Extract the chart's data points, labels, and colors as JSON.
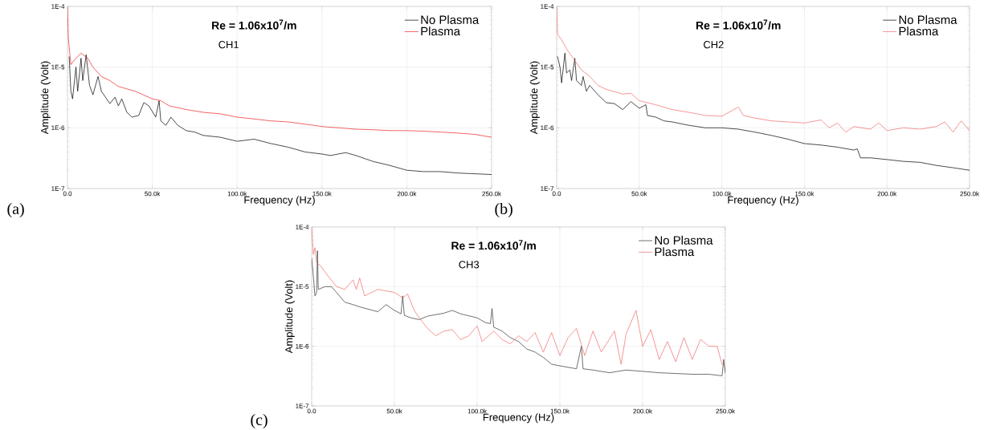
{
  "chart_data": [
    {
      "type": "line",
      "xlabel": "Frequency (Hz)",
      "ylabel": "Amplitude (Volt)",
      "log": "y",
      "grid": true,
      "legend": "top right",
      "xlim": [
        0,
        250000
      ],
      "xticks": [
        {
          "value": 0,
          "label": "0.0"
        },
        {
          "value": 50000,
          "label": "50.0k"
        },
        {
          "value": 100000,
          "label": "100.0k"
        },
        {
          "value": 150000,
          "label": "150.0k"
        },
        {
          "value": 200000,
          "label": "200.0k"
        },
        {
          "value": 250000,
          "label": "250.0k"
        }
      ],
      "ylim": [
        1e-07,
        0.0001
      ],
      "yticks": [
        {
          "value": 1e-07,
          "label": "1E-7"
        },
        {
          "value": 1e-06,
          "label": "1E-6"
        },
        {
          "value": 1e-05,
          "label": "1E-5"
        },
        {
          "value": 0.0001,
          "label": "1E-4"
        }
      ],
      "annotations": [
        "Re = 1.06x10$^{7}$/m",
        "CH1",
        "(a)"
      ],
      "series": [
        {
          "name": "No Plasma",
          "color": "#000000",
          "x": [
            1000,
            2000,
            3000,
            5000,
            6000,
            8000,
            9000,
            11000,
            13000,
            15000,
            18000,
            20000,
            25000,
            28000,
            30000,
            32000,
            35000,
            38000,
            42000,
            45000,
            48000,
            52000,
            54000,
            55000,
            58000,
            61000,
            65000,
            70000,
            75000,
            80000,
            90000,
            100000,
            110000,
            120000,
            130000,
            140000,
            150000,
            155000,
            164000,
            170000,
            180000,
            190000,
            200000,
            210000,
            220000,
            230000,
            240000,
            250000
          ],
          "values": [
            1.5e-05,
            4e-06,
            3e-06,
            1e-05,
            4e-06,
            1.4e-05,
            6e-06,
            1.6e-05,
            5e-06,
            3.5e-06,
            7e-06,
            4e-06,
            2.5e-06,
            3.2e-06,
            2.3e-06,
            3e-06,
            1.8e-06,
            1.5e-06,
            1.6e-06,
            2.6e-06,
            2.3e-06,
            1.5e-06,
            2.8e-06,
            1.3e-06,
            1.1e-06,
            1.5e-06,
            1.1e-06,
            9e-07,
            8.5e-07,
            7.5e-07,
            7e-07,
            6e-07,
            6.5e-07,
            5.5e-07,
            4.8e-07,
            4e-07,
            3.7e-07,
            3.5e-07,
            3.9e-07,
            3.5e-07,
            2.8e-07,
            2.4e-07,
            2e-07,
            1.9e-07,
            1.9e-07,
            1.8e-07,
            1.75e-07,
            1.7e-07
          ]
        },
        {
          "name": "Plasma",
          "color": "#ee2222",
          "x": [
            0,
            500,
            2000,
            4000,
            8000,
            12000,
            15000,
            20000,
            25000,
            30000,
            40000,
            50000,
            55000,
            60000,
            70000,
            80000,
            90000,
            100000,
            110000,
            120000,
            130000,
            140000,
            150000,
            160000,
            170000,
            180000,
            190000,
            200000,
            210000,
            220000,
            230000,
            240000,
            250000
          ],
          "values": [
            0.0001,
            3e-05,
            1.1e-05,
            1.3e-05,
            1.7e-05,
            1.4e-05,
            1e-05,
            7e-06,
            6e-06,
            4.8e-06,
            4e-06,
            3e-06,
            2.8e-06,
            2.3e-06,
            2e-06,
            1.8e-06,
            1.7e-06,
            1.5e-06,
            1.4e-06,
            1.3e-06,
            1.25e-06,
            1.15e-06,
            1.05e-06,
            1e-06,
            9.5e-07,
            9.3e-07,
            9e-07,
            9e-07,
            8.8e-07,
            8.5e-07,
            8.2e-07,
            7.8e-07,
            7e-07
          ]
        }
      ]
    },
    {
      "type": "line",
      "xlabel": "Frequency (Hz)",
      "ylabel": "Amplitude (Volt)",
      "log": "y",
      "grid": true,
      "legend": "top right",
      "xlim": [
        0,
        250000
      ],
      "xticks": [
        {
          "value": 0,
          "label": "0.0"
        },
        {
          "value": 50000,
          "label": "50.0k"
        },
        {
          "value": 100000,
          "label": "100.0k"
        },
        {
          "value": 150000,
          "label": "150.0k"
        },
        {
          "value": 200000,
          "label": "200.0k"
        },
        {
          "value": 250000,
          "label": "250.0k"
        }
      ],
      "ylim": [
        1e-07,
        0.0001
      ],
      "yticks": [
        {
          "value": 1e-07,
          "label": "1E-7"
        },
        {
          "value": 1e-06,
          "label": "1E-6"
        },
        {
          "value": 1e-05,
          "label": "1E-5"
        },
        {
          "value": 0.0001,
          "label": "1E-4"
        }
      ],
      "annotations": [
        "Re = 1.06x10$^{7}$/m",
        "CH2",
        "(b)"
      ],
      "series": [
        {
          "name": "No Plasma",
          "color": "#000000",
          "x": [
            500,
            2000,
            3000,
            5000,
            6000,
            8000,
            9000,
            11000,
            12000,
            15000,
            16000,
            18000,
            20000,
            25000,
            30000,
            35000,
            40000,
            45000,
            50000,
            54000,
            55000,
            60000,
            65000,
            70000,
            80000,
            90000,
            100000,
            110000,
            120000,
            130000,
            140000,
            150000,
            160000,
            170000,
            180000,
            182000,
            184000,
            190000,
            200000,
            210000,
            220000,
            230000,
            240000,
            250000
          ],
          "values": [
            1.5e-05,
            1e-05,
            5.5e-06,
            1.7e-05,
            8e-06,
            9e-06,
            6e-06,
            1.4e-05,
            6e-06,
            5e-06,
            7e-06,
            4e-06,
            5e-06,
            3.5e-06,
            2.6e-06,
            2.5e-06,
            2e-06,
            2.7e-06,
            2.1e-06,
            2.4e-06,
            1.6e-06,
            1.5e-06,
            1.3e-06,
            1.25e-06,
            1.1e-06,
            1e-06,
            1e-06,
            9.5e-07,
            8.5e-07,
            7.5e-07,
            6.5e-07,
            5.5e-07,
            5.2e-07,
            4.8e-07,
            4.3e-07,
            4.5e-07,
            3.2e-07,
            3.2e-07,
            3e-07,
            2.8e-07,
            2.7e-07,
            2.4e-07,
            2.2e-07,
            2e-07
          ]
        },
        {
          "name": "Plasma",
          "color": "#f06868",
          "x": [
            0,
            500,
            3000,
            6000,
            10000,
            15000,
            20000,
            25000,
            30000,
            40000,
            45000,
            50000,
            60000,
            70000,
            80000,
            90000,
            100000,
            110000,
            113000,
            120000,
            130000,
            140000,
            150000,
            160000,
            165000,
            170000,
            175000,
            180000,
            190000,
            195000,
            200000,
            210000,
            220000,
            230000,
            235000,
            240000,
            245000,
            250000
          ],
          "values": [
            0.0001,
            3.5e-05,
            2.8e-05,
            2e-05,
            1.4e-05,
            9e-06,
            7e-06,
            5e-06,
            4.3e-06,
            3.6e-06,
            3.7e-06,
            2.8e-06,
            2.4e-06,
            2e-06,
            1.8e-06,
            1.6e-06,
            1.55e-06,
            2.2e-06,
            1.6e-06,
            1.45e-06,
            1.3e-06,
            1.25e-06,
            1.2e-06,
            1.35e-06,
            1e-06,
            1.2e-06,
            8.5e-07,
            1.05e-06,
            9.5e-07,
            1.2e-06,
            9e-07,
            1e-06,
            9.5e-07,
            1.05e-06,
            1.25e-06,
            8.5e-07,
            1.3e-06,
            9e-07
          ]
        }
      ]
    },
    {
      "type": "line",
      "xlabel": "Frequency (Hz)",
      "ylabel": "Amplitude (Volt)",
      "log": "y",
      "grid": true,
      "legend": "top right",
      "xlim": [
        0,
        250000
      ],
      "xticks": [
        {
          "value": 0,
          "label": "0.0"
        },
        {
          "value": 50000,
          "label": "50.0k"
        },
        {
          "value": 100000,
          "label": "100.0k"
        },
        {
          "value": 150000,
          "label": "150.0k"
        },
        {
          "value": 200000,
          "label": "200.0k"
        },
        {
          "value": 250000,
          "label": "250.0k"
        }
      ],
      "ylim": [
        1e-07,
        0.0001
      ],
      "yticks": [
        {
          "value": 1e-07,
          "label": "1E-7"
        },
        {
          "value": 1e-06,
          "label": "1E-6"
        },
        {
          "value": 1e-05,
          "label": "1E-5"
        },
        {
          "value": 0.0001,
          "label": "1E-4"
        }
      ],
      "annotations": [
        "Re = 1.06x10$^{7}$/m",
        "CH3",
        "(c)"
      ],
      "series": [
        {
          "name": "No Plasma",
          "color": "#333333",
          "x": [
            0,
            1000,
            2000,
            3000,
            3500,
            4000,
            8000,
            12000,
            15000,
            20000,
            25000,
            30000,
            40000,
            45000,
            50000,
            54000,
            55000,
            56000,
            60000,
            65000,
            70000,
            80000,
            85000,
            90000,
            100000,
            105000,
            108000,
            109000,
            110000,
            115000,
            120000,
            125000,
            130000,
            135000,
            140000,
            145000,
            150000,
            160000,
            163000,
            164000,
            170000,
            180000,
            190000,
            200000,
            210000,
            220000,
            230000,
            240000,
            248000,
            249000,
            250000
          ],
          "values": [
            3e-05,
            1.5e-05,
            7e-06,
            8e-06,
            4e-05,
            9e-06,
            1e-05,
            1e-05,
            8e-06,
            5.5e-06,
            5e-06,
            4.5e-06,
            3.8e-06,
            5e-06,
            4e-06,
            3.5e-06,
            7e-06,
            3.3e-06,
            3e-06,
            2.8e-06,
            3.2e-06,
            3.6e-06,
            4e-06,
            3.5e-06,
            3e-06,
            2.5e-06,
            2.4e-06,
            4.3e-06,
            2.1e-06,
            1.8e-06,
            1.4e-06,
            1.2e-06,
            9e-07,
            8e-07,
            6.5e-07,
            5e-07,
            4.7e-07,
            4.2e-07,
            1e-06,
            4.2e-07,
            4e-07,
            3.6e-07,
            4e-07,
            3.8e-07,
            3.6e-07,
            3.5e-07,
            3.4e-07,
            3.4e-07,
            3.2e-07,
            6e-07,
            3.5e-07
          ]
        },
        {
          "name": "Plasma",
          "color": "#f06868",
          "x": [
            0,
            1000,
            2000,
            3000,
            5000,
            10000,
            15000,
            20000,
            25000,
            27000,
            29000,
            32000,
            40000,
            50000,
            55000,
            58000,
            62000,
            65000,
            70000,
            75000,
            80000,
            85000,
            90000,
            95000,
            100000,
            103000,
            110000,
            115000,
            120000,
            125000,
            130000,
            135000,
            140000,
            145000,
            150000,
            155000,
            160000,
            165000,
            170000,
            175000,
            183000,
            187000,
            190000,
            196000,
            200000,
            205000,
            210000,
            215000,
            220000,
            225000,
            230000,
            235000,
            240000,
            245000,
            248000,
            250000
          ],
          "values": [
            0.0001,
            3.5e-05,
            4.5e-05,
            2.5e-05,
            2.3e-05,
            1.5e-05,
            1e-05,
            9e-06,
            1.3e-05,
            9e-06,
            1.4e-05,
            7e-06,
            9e-06,
            8e-06,
            6.5e-06,
            7.5e-06,
            4e-06,
            3e-06,
            2e-06,
            1.5e-06,
            1.8e-06,
            1.9e-06,
            1.3e-06,
            1.5e-06,
            2.2e-06,
            1.2e-06,
            1.8e-06,
            1.3e-06,
            1.1e-06,
            1.5e-06,
            1.2e-06,
            1.7e-06,
            8e-07,
            1.7e-06,
            7e-07,
            1.4e-06,
            2e-06,
            7e-07,
            1.8e-06,
            8e-07,
            1.8e-06,
            5e-07,
            1.6e-06,
            4e-06,
            1e-06,
            1.9e-06,
            6e-07,
            1.2e-06,
            5.5e-07,
            1.4e-06,
            6e-07,
            1.3e-06,
            1e-06,
            1e-06,
            5e-07,
            4.5e-07
          ]
        }
      ]
    }
  ]
}
